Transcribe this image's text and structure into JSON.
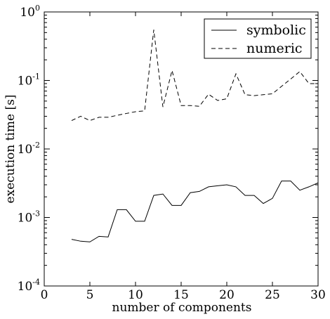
{
  "chart_data": {
    "type": "line",
    "title": "",
    "xlabel": "number of components",
    "ylabel": "execution time [s]",
    "xlim": [
      0,
      30
    ],
    "ylim": [
      0.0001,
      1
    ],
    "yscale": "log",
    "grid": false,
    "legend_position": "top-right",
    "x_ticks": [
      {
        "value": 0,
        "label": "0"
      },
      {
        "value": 5,
        "label": "5"
      },
      {
        "value": 10,
        "label": "10"
      },
      {
        "value": 15,
        "label": "15"
      },
      {
        "value": 20,
        "label": "20"
      },
      {
        "value": 25,
        "label": "25"
      },
      {
        "value": 30,
        "label": "30"
      }
    ],
    "y_ticks": [
      {
        "value": 0.0001,
        "base": "10",
        "exp": "-4"
      },
      {
        "value": 0.001,
        "base": "10",
        "exp": "-3"
      },
      {
        "value": 0.01,
        "base": "10",
        "exp": "-2"
      },
      {
        "value": 0.1,
        "base": "10",
        "exp": "-1"
      },
      {
        "value": 1,
        "base": "10",
        "exp": "0"
      }
    ],
    "x": [
      3,
      4,
      5,
      6,
      7,
      8,
      9,
      10,
      11,
      12,
      13,
      14,
      15,
      16,
      17,
      18,
      19,
      20,
      21,
      22,
      23,
      24,
      25,
      26,
      27,
      28,
      29,
      30
    ],
    "series": [
      {
        "name": "symbolic",
        "style": "solid",
        "color": "#000000",
        "values": [
          0.00048,
          0.00045,
          0.00044,
          0.00053,
          0.00052,
          0.0013,
          0.0013,
          0.00088,
          0.00088,
          0.0021,
          0.0022,
          0.0015,
          0.0015,
          0.0023,
          0.0024,
          0.0028,
          0.0029,
          0.003,
          0.0028,
          0.0021,
          0.0021,
          0.0016,
          0.0019,
          0.0034,
          0.0034,
          0.0025,
          0.0028,
          0.0032
        ]
      },
      {
        "name": "numeric",
        "style": "dashed",
        "color": "#000000",
        "values": [
          0.026,
          0.03,
          0.026,
          0.029,
          0.029,
          0.031,
          0.033,
          0.035,
          0.036,
          0.55,
          0.041,
          0.14,
          0.043,
          0.043,
          0.042,
          0.063,
          0.051,
          0.054,
          0.125,
          0.062,
          0.06,
          0.062,
          0.064,
          0.082,
          0.105,
          0.135,
          0.09,
          0.09
        ]
      }
    ]
  }
}
